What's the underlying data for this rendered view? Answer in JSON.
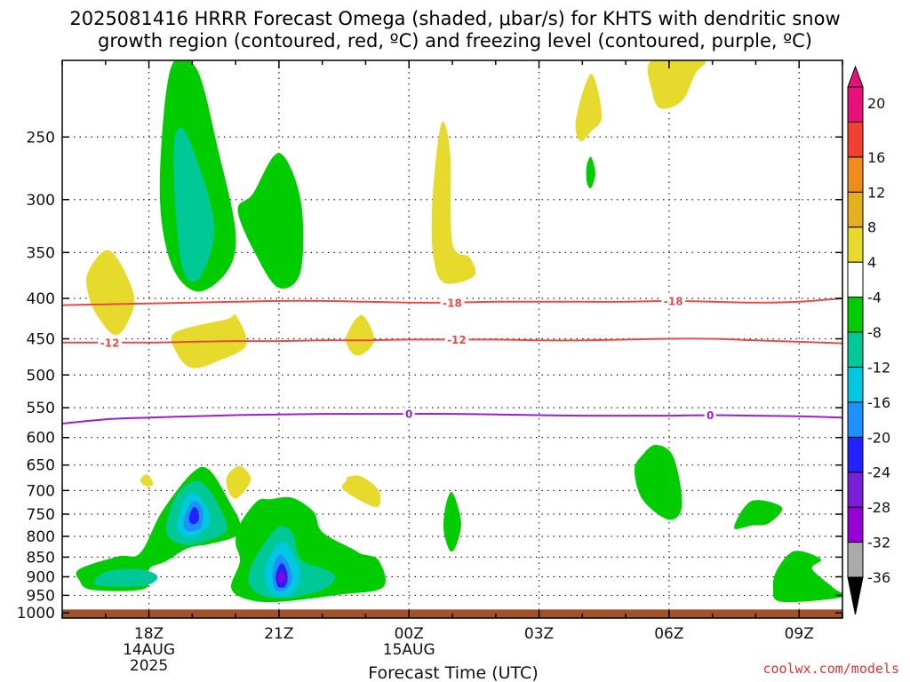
{
  "chart_data": {
    "type": "heatmap",
    "title_line1": "2025081416 HRRR Forecast Omega (shaded, μbar/s) for KHTS with dendritic snow",
    "title_line2": "growth region (contoured, red, ºC) and freezing level (contoured, purple, ºC)",
    "xlabel": "Forecast Time (UTC)",
    "credit": "coolwx.com/models",
    "x_ticks": [
      {
        "label": "18Z",
        "hour": 18,
        "sub1": "14AUG",
        "sub2": "2025"
      },
      {
        "label": "21Z",
        "hour": 21,
        "sub1": "",
        "sub2": ""
      },
      {
        "label": "00Z",
        "hour": 24,
        "sub1": "15AUG",
        "sub2": ""
      },
      {
        "label": "03Z",
        "hour": 27,
        "sub1": "",
        "sub2": ""
      },
      {
        "label": "06Z",
        "hour": 30,
        "sub1": "",
        "sub2": ""
      },
      {
        "label": "09Z",
        "hour": 33,
        "sub1": "",
        "sub2": ""
      }
    ],
    "xlim": [
      16,
      34
    ],
    "ylim": [
      1015,
      200
    ],
    "y_ticks": [
      {
        "p": 250,
        "label": "250"
      },
      {
        "p": 300,
        "label": "300"
      },
      {
        "p": 350,
        "label": "350"
      },
      {
        "p": 400,
        "label": "400"
      },
      {
        "p": 450,
        "label": "450"
      },
      {
        "p": 500,
        "label": "500"
      },
      {
        "p": 550,
        "label": "550"
      },
      {
        "p": 600,
        "label": "600"
      },
      {
        "p": 650,
        "label": "650"
      },
      {
        "p": 700,
        "label": "700"
      },
      {
        "p": 750,
        "label": "750"
      },
      {
        "p": 800,
        "label": "800"
      },
      {
        "p": 850,
        "label": "850"
      },
      {
        "p": 900,
        "label": "900"
      },
      {
        "p": 950,
        "label": "950"
      },
      {
        "p": 1000,
        "label": "1000"
      }
    ],
    "ground_color": "#a0522d",
    "ground_top_p": 990,
    "colorbar": {
      "colors": [
        "#aaaaaa",
        "#9400d3",
        "#7a1fd6",
        "#2222ff",
        "#1e90ff",
        "#00c8e0",
        "#00c896",
        "#00cc00",
        "#ffffff",
        "#e6db2d",
        "#e6b020",
        "#f08c1e",
        "#f04030",
        "#e8107a"
      ],
      "labels": [
        "-36",
        "-32",
        "-28",
        "-24",
        "-20",
        "-16",
        "-12",
        "-8",
        "-4",
        "4",
        "8",
        "12",
        "16",
        "20"
      ]
    },
    "regions": [
      {
        "level": 0,
        "pts": [
          [
            18.5,
            205
          ],
          [
            19.1,
            205
          ],
          [
            19.6,
            260
          ],
          [
            20.0,
            330
          ],
          [
            19.8,
            370
          ],
          [
            19.1,
            392
          ],
          [
            18.5,
            360
          ],
          [
            18.25,
            290
          ]
        ]
      },
      {
        "level": 1,
        "pts": [
          [
            18.6,
            250
          ],
          [
            18.9,
            250
          ],
          [
            19.5,
            320
          ],
          [
            19.2,
            375
          ],
          [
            18.8,
            370
          ],
          [
            18.6,
            300
          ]
        ]
      },
      {
        "level": 0,
        "pts": [
          [
            20.4,
            295
          ],
          [
            21.0,
            262
          ],
          [
            21.5,
            300
          ],
          [
            21.5,
            370
          ],
          [
            21.0,
            388
          ],
          [
            20.5,
            355
          ],
          [
            20.05,
            310
          ]
        ]
      },
      {
        "level": 0,
        "pts": [
          [
            16.4,
            880
          ],
          [
            17.3,
            848
          ],
          [
            17.8,
            840
          ],
          [
            18.3,
            745
          ],
          [
            19.0,
            665
          ],
          [
            19.4,
            660
          ],
          [
            19.9,
            730
          ],
          [
            20.1,
            770
          ],
          [
            20.0,
            800
          ],
          [
            19.4,
            818
          ],
          [
            18.9,
            828
          ],
          [
            18.4,
            860
          ],
          [
            18.0,
            880
          ],
          [
            17.9,
            932
          ],
          [
            16.7,
            935
          ],
          [
            16.4,
            910
          ]
        ]
      },
      {
        "level": 0,
        "pts": [
          [
            20.1,
            772
          ],
          [
            20.5,
            722
          ],
          [
            20.8,
            718
          ],
          [
            21.3,
            715
          ],
          [
            21.8,
            745
          ],
          [
            22.0,
            790
          ],
          [
            22.7,
            830
          ],
          [
            22.9,
            842
          ],
          [
            23.3,
            858
          ],
          [
            23.4,
            928
          ],
          [
            22.4,
            948
          ],
          [
            21.0,
            968
          ],
          [
            20.3,
            962
          ],
          [
            19.9,
            930
          ],
          [
            20.1,
            860
          ],
          [
            20.0,
            815
          ]
        ]
      },
      {
        "level": 1,
        "pts": [
          [
            16.9,
            892
          ],
          [
            17.4,
            880
          ],
          [
            17.9,
            882
          ],
          [
            18.2,
            900
          ],
          [
            17.9,
            923
          ],
          [
            16.8,
            922
          ]
        ]
      },
      {
        "level": 1,
        "pts": [
          [
            18.4,
            790
          ],
          [
            18.6,
            715
          ],
          [
            19.0,
            682
          ],
          [
            19.3,
            690
          ],
          [
            19.6,
            730
          ],
          [
            19.8,
            785
          ],
          [
            19.3,
            812
          ],
          [
            18.8,
            820
          ]
        ]
      },
      {
        "level": 2,
        "pts": [
          [
            18.65,
            775
          ],
          [
            18.85,
            715
          ],
          [
            19.05,
            705
          ],
          [
            19.3,
            730
          ],
          [
            19.4,
            770
          ],
          [
            19.05,
            800
          ],
          [
            18.8,
            800
          ]
        ]
      },
      {
        "level": 3,
        "pts": [
          [
            18.8,
            765
          ],
          [
            18.95,
            730
          ],
          [
            19.1,
            722
          ],
          [
            19.25,
            745
          ],
          [
            19.2,
            780
          ],
          [
            19.0,
            788
          ],
          [
            18.85,
            785
          ]
        ]
      },
      {
        "level": 4,
        "pts": [
          [
            18.93,
            755
          ],
          [
            19.03,
            735
          ],
          [
            19.13,
            742
          ],
          [
            19.15,
            762
          ],
          [
            19.05,
            772
          ],
          [
            18.95,
            768
          ]
        ]
      },
      {
        "level": 1,
        "pts": [
          [
            20.4,
            862
          ],
          [
            20.7,
            812
          ],
          [
            21.0,
            778
          ],
          [
            21.3,
            790
          ],
          [
            21.5,
            855
          ],
          [
            22.0,
            878
          ],
          [
            22.3,
            900
          ],
          [
            22.0,
            935
          ],
          [
            21.2,
            957
          ],
          [
            20.6,
            950
          ],
          [
            20.3,
            915
          ]
        ]
      },
      {
        "level": 2,
        "pts": [
          [
            20.7,
            870
          ],
          [
            20.95,
            822
          ],
          [
            21.15,
            815
          ],
          [
            21.35,
            850
          ],
          [
            21.5,
            895
          ],
          [
            21.3,
            945
          ],
          [
            20.9,
            948
          ],
          [
            20.7,
            915
          ]
        ]
      },
      {
        "level": 3,
        "pts": [
          [
            20.85,
            885
          ],
          [
            20.97,
            848
          ],
          [
            21.1,
            848
          ],
          [
            21.25,
            875
          ],
          [
            21.3,
            912
          ],
          [
            21.1,
            938
          ],
          [
            20.9,
            930
          ]
        ]
      },
      {
        "level": 4,
        "pts": [
          [
            20.93,
            895
          ],
          [
            21.02,
            868
          ],
          [
            21.12,
            870
          ],
          [
            21.2,
            898
          ],
          [
            21.15,
            925
          ],
          [
            21.0,
            928
          ],
          [
            20.94,
            915
          ]
        ]
      },
      {
        "level": 5,
        "pts": [
          [
            20.98,
            900
          ],
          [
            21.05,
            886
          ],
          [
            21.13,
            896
          ],
          [
            21.1,
            915
          ],
          [
            21.02,
            915
          ]
        ]
      },
      {
        "level": 0,
        "pts": [
          [
            24.85,
            730
          ],
          [
            25.0,
            704
          ],
          [
            25.2,
            765
          ],
          [
            25.1,
            818
          ],
          [
            24.95,
            835
          ],
          [
            24.8,
            785
          ]
        ]
      },
      {
        "level": 0,
        "pts": [
          [
            29.4,
            630
          ],
          [
            29.7,
            613
          ],
          [
            30.1,
            635
          ],
          [
            30.3,
            730
          ],
          [
            30.0,
            762
          ],
          [
            29.4,
            720
          ],
          [
            29.2,
            660
          ]
        ]
      },
      {
        "level": 0,
        "pts": [
          [
            31.5,
            780
          ],
          [
            31.9,
            722
          ],
          [
            32.6,
            735
          ],
          [
            32.3,
            770
          ],
          [
            31.9,
            775
          ]
        ]
      },
      {
        "level": 0,
        "pts": [
          [
            32.5,
            880
          ],
          [
            32.9,
            835
          ],
          [
            33.5,
            855
          ],
          [
            33.3,
            880
          ],
          [
            33.8,
            930
          ],
          [
            34.0,
            955
          ],
          [
            32.6,
            968
          ],
          [
            32.4,
            930
          ]
        ]
      },
      {
        "level": 6,
        "pts": [
          [
            16.6,
            370
          ],
          [
            17.1,
            348
          ],
          [
            17.65,
            395
          ],
          [
            17.5,
            430
          ],
          [
            17.2,
            445
          ],
          [
            16.8,
            420
          ],
          [
            16.6,
            395
          ]
        ]
      },
      {
        "level": 6,
        "pts": [
          [
            18.6,
            442
          ],
          [
            19.8,
            425
          ],
          [
            20.0,
            420
          ],
          [
            20.25,
            458
          ],
          [
            19.6,
            480
          ],
          [
            19.0,
            490
          ],
          [
            18.65,
            470
          ]
        ]
      },
      {
        "level": 6,
        "pts": [
          [
            22.55,
            448
          ],
          [
            22.9,
            420
          ],
          [
            23.2,
            450
          ],
          [
            22.95,
            470
          ],
          [
            22.7,
            470
          ]
        ]
      },
      {
        "level": 6,
        "pts": [
          [
            24.55,
            295
          ],
          [
            24.75,
            240
          ],
          [
            24.95,
            262
          ],
          [
            25.0,
            340
          ],
          [
            25.4,
            355
          ],
          [
            25.5,
            375
          ],
          [
            24.8,
            382
          ],
          [
            24.55,
            350
          ]
        ]
      },
      {
        "level": 6,
        "pts": [
          [
            27.85,
            238
          ],
          [
            28.2,
            208
          ],
          [
            28.45,
            235
          ],
          [
            28.2,
            246
          ],
          [
            27.95,
            253
          ]
        ]
      },
      {
        "level": 6,
        "pts": [
          [
            29.6,
            200
          ],
          [
            30.8,
            200
          ],
          [
            30.6,
            208
          ],
          [
            30.3,
            225
          ],
          [
            29.8,
            230
          ],
          [
            29.6,
            218
          ]
        ]
      },
      {
        "level": 6,
        "pts": [
          [
            19.8,
            672
          ],
          [
            20.1,
            652
          ],
          [
            20.35,
            678
          ],
          [
            20.05,
            715
          ],
          [
            19.85,
            705
          ]
        ]
      },
      {
        "level": 6,
        "pts": [
          [
            22.6,
            673
          ],
          [
            22.9,
            672
          ],
          [
            23.3,
            700
          ],
          [
            23.25,
            735
          ],
          [
            22.5,
            700
          ],
          [
            22.55,
            680
          ]
        ]
      },
      {
        "level": 6,
        "pts": [
          [
            17.8,
            680
          ],
          [
            17.95,
            668
          ],
          [
            18.1,
            686
          ],
          [
            17.95,
            692
          ]
        ]
      },
      {
        "level": 7,
        "pts": [
          [
            28.1,
            272
          ],
          [
            28.2,
            265
          ],
          [
            28.3,
            278
          ],
          [
            28.2,
            290
          ],
          [
            28.1,
            285
          ]
        ]
      }
    ],
    "level_colors": [
      "#00cc00",
      "#00c896",
      "#00c8e0",
      "#1e90ff",
      "#2222ff",
      "#9400d3",
      "#e6db2d",
      "#00cc00"
    ],
    "contours": [
      {
        "value": "-18",
        "color": "#e84a4a",
        "x": [
          16,
          17,
          18,
          19,
          20,
          21,
          22,
          23,
          24,
          25,
          26,
          27,
          28,
          29,
          30,
          31,
          32,
          33,
          34
        ],
        "p": [
          408,
          407,
          406,
          405,
          404,
          403,
          403,
          404,
          405,
          405,
          404,
          404,
          404,
          404,
          403,
          404,
          405,
          404,
          400
        ],
        "labels": [
          25,
          30.1
        ]
      },
      {
        "value": "-12",
        "color": "#e84a4a",
        "x": [
          16,
          17,
          18,
          19,
          20,
          21,
          22,
          23,
          24,
          25,
          26,
          27,
          28,
          29,
          30,
          31,
          32,
          33,
          34
        ],
        "p": [
          455,
          455,
          455,
          454,
          453,
          453,
          452,
          452,
          451,
          451,
          451,
          452,
          452,
          451,
          450,
          450,
          452,
          454,
          456
        ],
        "labels": [
          17.1,
          25.1
        ]
      },
      {
        "value": "0",
        "color": "#9b1fd2",
        "x": [
          16,
          17,
          18,
          19,
          20,
          21,
          22,
          23,
          24,
          25,
          26,
          27,
          28,
          29,
          30,
          31,
          32,
          33,
          34
        ],
        "p": [
          576,
          569,
          566,
          564,
          562,
          561,
          560,
          560,
          560,
          560,
          561,
          562,
          563,
          563,
          563,
          562,
          563,
          564,
          566
        ],
        "labels": [
          24,
          30.95
        ]
      }
    ]
  }
}
